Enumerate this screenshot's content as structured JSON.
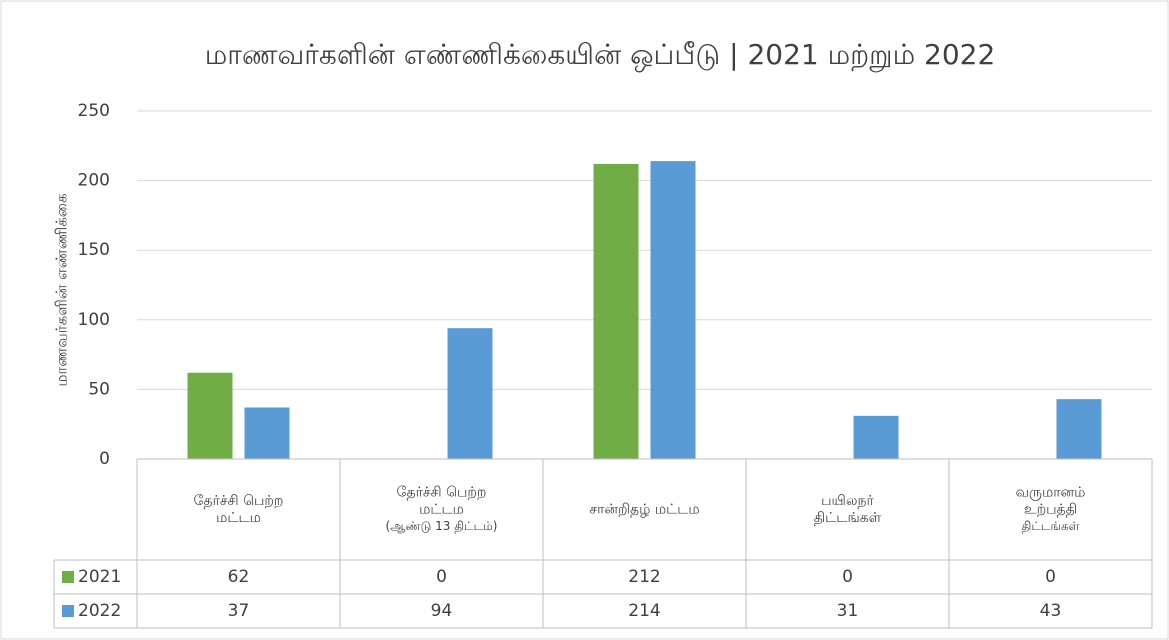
{
  "chart_data": {
    "type": "bar",
    "title": "மாணவர்களின் எண்ணிக்கையின் ஒப்பீடு | 2021 மற்றும் 2022",
    "y_label": "மாணவர்களின் எண்ணிக்கை",
    "categories": [
      [
        "தேர்ச்சி பெற்ற",
        "மட்டம"
      ],
      [
        "தேர்ச்சி பெற்ற",
        "மட்டம",
        "(ஆண்டு 13 திட்டம்)"
      ],
      [
        "சான்றிதழ் மட்டம"
      ],
      [
        "பயிலநர்",
        "திட்டங்கள்"
      ],
      [
        "வருமானம்",
        "உற்பத்தி",
        "திட்டங்கள்"
      ]
    ],
    "series": [
      {
        "name": "2021",
        "color": "#70ad47",
        "values": [
          62,
          0,
          212,
          0,
          0
        ]
      },
      {
        "name": "2022",
        "color": "#5b9bd5",
        "values": [
          37,
          94,
          214,
          31,
          43
        ]
      }
    ],
    "ylim": [
      0,
      250
    ],
    "yticks": [
      0,
      50,
      100,
      150,
      200,
      250
    ],
    "grid": true,
    "data_table": true
  }
}
